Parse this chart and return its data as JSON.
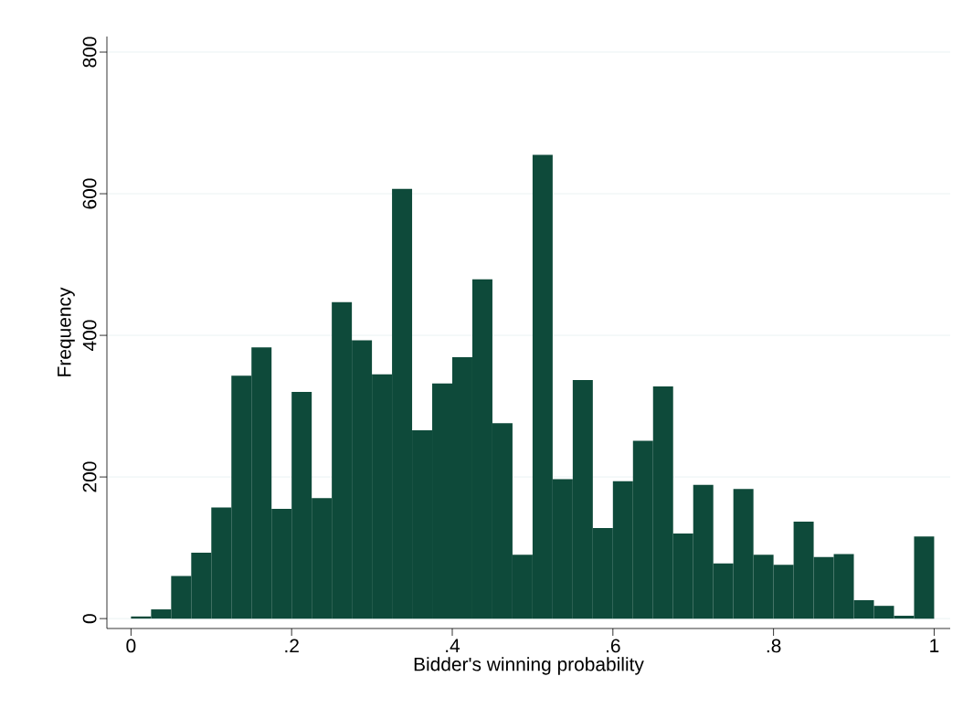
{
  "chart_data": {
    "type": "histogram",
    "xlabel": "Bidder's winning probability",
    "ylabel": "Frequency",
    "bins": [
      0,
      0.025,
      0.05,
      0.075,
      0.1,
      0.125,
      0.15,
      0.175,
      0.2,
      0.225,
      0.25,
      0.275,
      0.3,
      0.325,
      0.35,
      0.375,
      0.4,
      0.425,
      0.45,
      0.475,
      0.5,
      0.525,
      0.55,
      0.575,
      0.6,
      0.625,
      0.65,
      0.675,
      0.7,
      0.725,
      0.75,
      0.775,
      0.8,
      0.825,
      0.85,
      0.875,
      0.9,
      0.925,
      0.95,
      0.975,
      1
    ],
    "values": [
      3,
      13,
      60,
      93,
      157,
      343,
      383,
      155,
      320,
      170,
      447,
      393,
      345,
      607,
      266,
      332,
      369,
      479,
      276,
      90,
      655,
      197,
      337,
      128,
      194,
      251,
      328,
      120,
      189,
      78,
      183,
      90,
      76,
      137,
      87,
      91,
      26,
      18,
      4,
      116
    ],
    "color": "#0e4a3a",
    "xlim": [
      -0.03,
      1.02
    ],
    "ylim": [
      -14,
      822
    ],
    "xticks": [
      0,
      {
        "value": 0.2,
        "label": ".2"
      },
      {
        "value": 0.4,
        "label": ".4"
      },
      {
        "value": 0.6,
        "label": ".6"
      },
      {
        "value": 0.8,
        "label": ".8"
      },
      1
    ],
    "yticks": [
      0,
      200,
      400,
      600,
      800
    ],
    "grid": "y"
  }
}
